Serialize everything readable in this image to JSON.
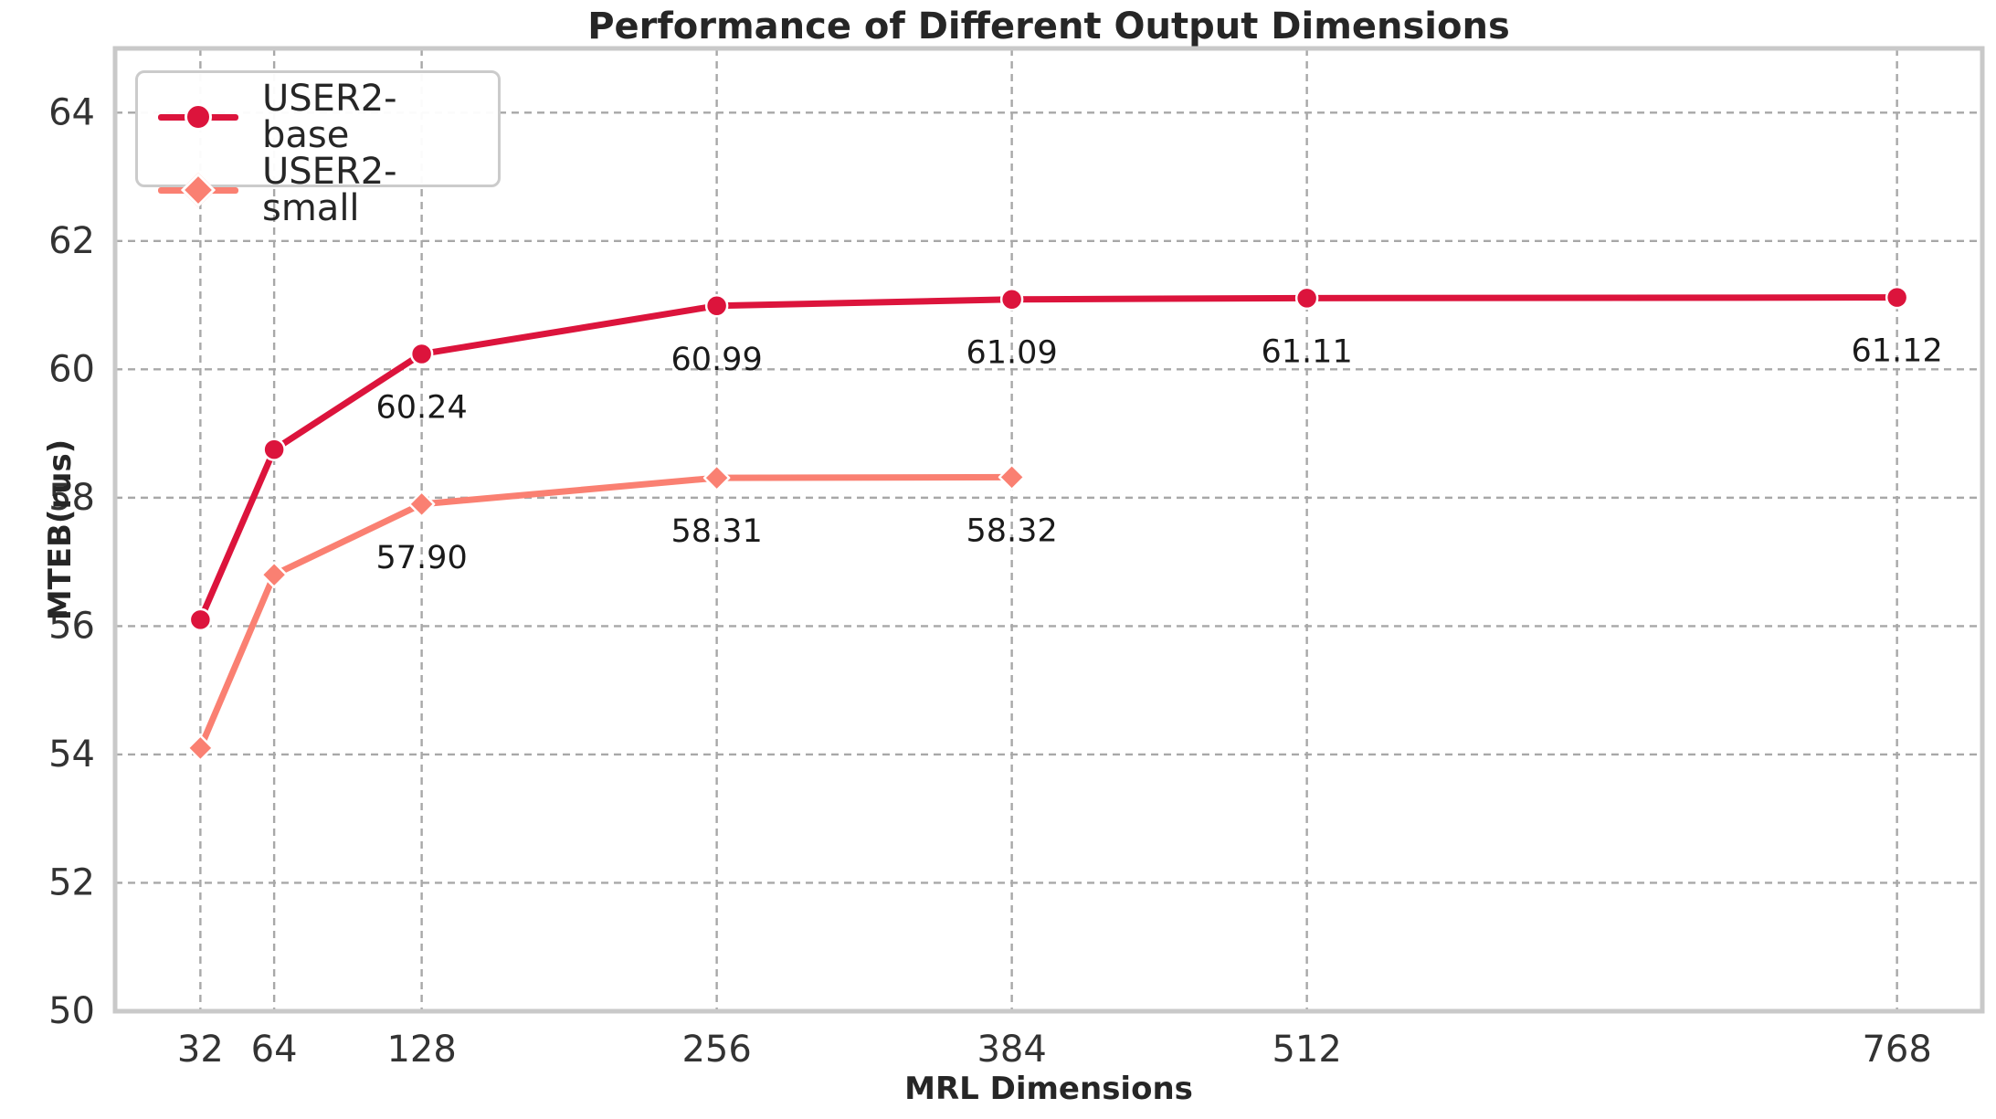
{
  "chart_data": {
    "type": "line",
    "title": "Performance of Different Output Dimensions",
    "xlabel": "MRL Dimensions",
    "ylabel": "MTEB(rus)",
    "xlim": [
      -5,
      805
    ],
    "ylim": [
      50,
      65
    ],
    "x_ticks": [
      32,
      64,
      128,
      256,
      384,
      512,
      768
    ],
    "y_ticks": [
      50,
      52,
      54,
      56,
      58,
      60,
      62,
      64
    ],
    "grid": true,
    "grid_style": "dashed",
    "legend_position": "upper left",
    "series": [
      {
        "name": "USER2-base",
        "color": "#DC143C",
        "marker": "circle",
        "x": [
          32,
          64,
          128,
          256,
          384,
          512,
          768
        ],
        "y": [
          56.1,
          58.75,
          60.24,
          60.99,
          61.09,
          61.11,
          61.12
        ],
        "point_labels": [
          "",
          "",
          "60.24",
          "60.99",
          "61.09",
          "61.11",
          "61.12"
        ]
      },
      {
        "name": "USER2-small",
        "color": "#FA8072",
        "marker": "diamond",
        "x": [
          32,
          64,
          128,
          256,
          384
        ],
        "y": [
          54.1,
          56.8,
          57.9,
          58.31,
          58.32
        ],
        "point_labels": [
          "",
          "",
          "57.90",
          "58.31",
          "58.32"
        ]
      }
    ],
    "colors": {
      "grid": "#a8a8a8",
      "spine": "#c9c9c9",
      "tick_label": "#333333",
      "point_label": "#1a1a1a",
      "title": "#262626"
    }
  }
}
